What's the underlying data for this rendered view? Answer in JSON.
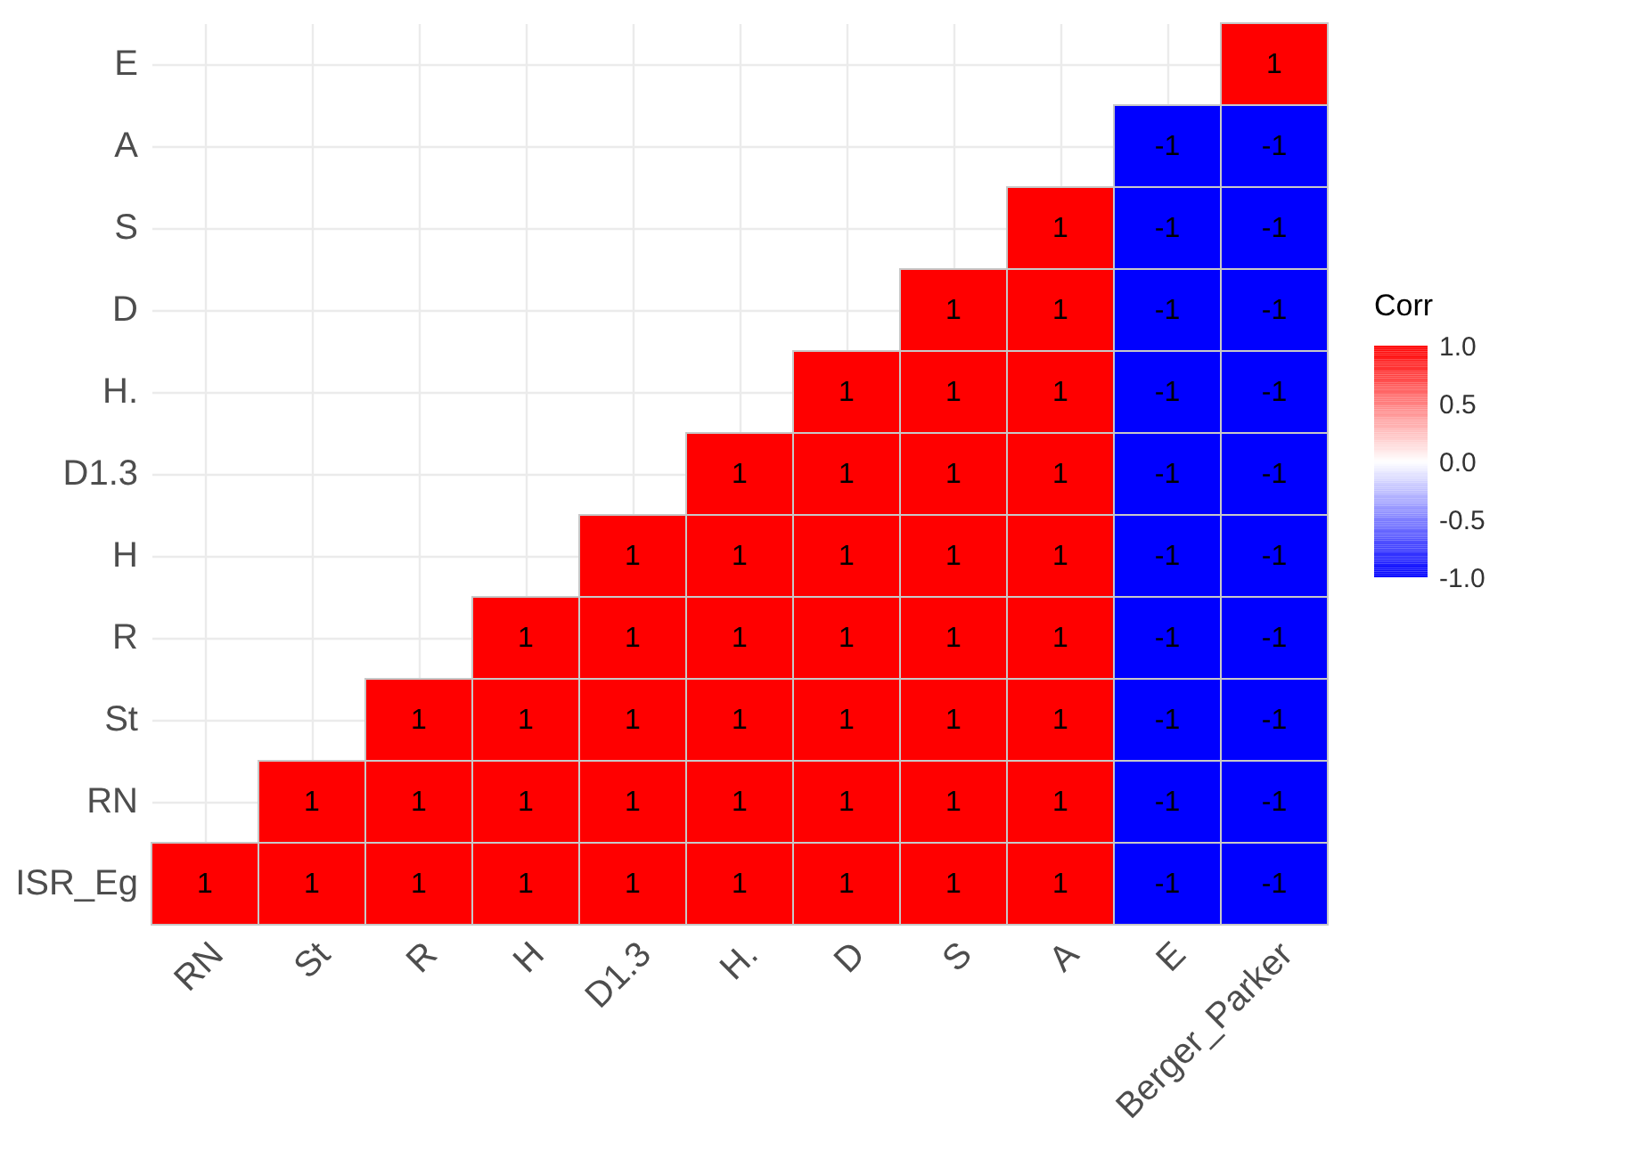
{
  "chart_data": {
    "type": "heatmap",
    "legend_title": "Corr",
    "categories": [
      "RN",
      "St",
      "R",
      "H",
      "D1.3",
      "H.",
      "D",
      "S",
      "A",
      "E",
      "Berger_Parker"
    ],
    "y_categories": [
      "E",
      "A",
      "S",
      "D",
      "H.",
      "D1.3",
      "H",
      "R",
      "St",
      "RN",
      "ISR_Eg"
    ],
    "cells": [
      [
        null,
        null,
        null,
        null,
        null,
        null,
        null,
        null,
        null,
        null,
        1
      ],
      [
        null,
        null,
        null,
        null,
        null,
        null,
        null,
        null,
        null,
        -1,
        -1
      ],
      [
        null,
        null,
        null,
        null,
        null,
        null,
        null,
        null,
        1,
        -1,
        -1
      ],
      [
        null,
        null,
        null,
        null,
        null,
        null,
        null,
        1,
        1,
        -1,
        -1
      ],
      [
        null,
        null,
        null,
        null,
        null,
        null,
        1,
        1,
        1,
        -1,
        -1
      ],
      [
        null,
        null,
        null,
        null,
        null,
        1,
        1,
        1,
        1,
        -1,
        -1
      ],
      [
        null,
        null,
        null,
        null,
        1,
        1,
        1,
        1,
        1,
        -1,
        -1
      ],
      [
        null,
        null,
        null,
        1,
        1,
        1,
        1,
        1,
        1,
        -1,
        -1
      ],
      [
        null,
        null,
        1,
        1,
        1,
        1,
        1,
        1,
        1,
        -1,
        -1
      ],
      [
        null,
        1,
        1,
        1,
        1,
        1,
        1,
        1,
        1,
        -1,
        -1
      ],
      [
        1,
        1,
        1,
        1,
        1,
        1,
        1,
        1,
        1,
        -1,
        -1
      ]
    ],
    "clim": [
      -1,
      1
    ],
    "cticks": [
      {
        "value": 1,
        "label": "1.0"
      },
      {
        "value": 0.5,
        "label": "0.5"
      },
      {
        "value": 0,
        "label": "0.0"
      },
      {
        "value": -0.5,
        "label": "-0.5"
      },
      {
        "value": -1,
        "label": "-1.0"
      }
    ],
    "data_labels": true,
    "grid": true
  }
}
